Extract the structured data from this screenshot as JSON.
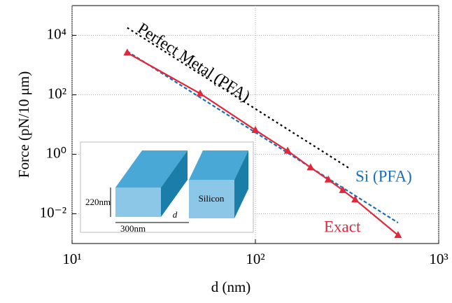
{
  "chart_data": {
    "type": "line",
    "log_x": true,
    "log_y": true,
    "grid": true,
    "xlabel": "d (nm)",
    "ylabel": "Force (pN/10 μm)",
    "xlim": [
      10,
      1000
    ],
    "ylim": [
      0.001,
      100000
    ],
    "xticks": [
      {
        "value": 10,
        "label": "10¹"
      },
      {
        "value": 100,
        "label": "10²"
      },
      {
        "value": 1000,
        "label": "10³"
      }
    ],
    "yticks": [
      {
        "value": 0.01,
        "label": "10⁻²"
      },
      {
        "value": 1,
        "label": "10⁰"
      },
      {
        "value": 100,
        "label": "10²"
      },
      {
        "value": 10000,
        "label": "10⁴"
      }
    ],
    "series": [
      {
        "name": "Perfect Metal (PFA)",
        "color": "#000000",
        "style": "dotted",
        "x": [
          20,
          330
        ],
        "values": [
          18000,
          0.32
        ]
      },
      {
        "name": "Si (PFA)",
        "color": "#1a6fb5",
        "style": "dashed",
        "x": [
          20,
          600
        ],
        "values": [
          2900,
          0.005
        ]
      },
      {
        "name": "Exact",
        "color": "#e0283c",
        "style": "solid",
        "marker": "triangle",
        "x": [
          20,
          50,
          100,
          150,
          200,
          250,
          300,
          350,
          600
        ],
        "values": [
          2600,
          110,
          6.5,
          1.3,
          0.36,
          0.14,
          0.062,
          0.03,
          0.0019
        ]
      }
    ]
  },
  "inset": {
    "labels": [
      "220nm",
      "300nm",
      "d",
      "Silicon"
    ]
  }
}
